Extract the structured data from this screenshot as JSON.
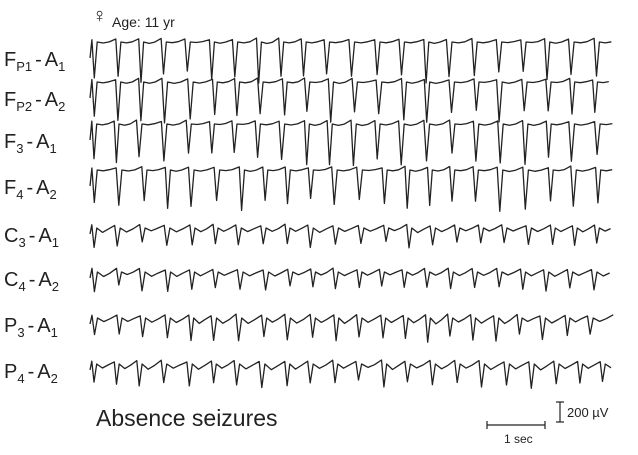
{
  "sex_symbol": "♀",
  "age": "Age: 11 yr",
  "separator": "-",
  "channels": [
    {
      "name": "F",
      "name_sub": "P1",
      "ref": "A",
      "ref_sub": "1"
    },
    {
      "name": "F",
      "name_sub": "P2",
      "ref": "A",
      "ref_sub": "2"
    },
    {
      "name": "F",
      "name_sub": "3",
      "ref": "A",
      "ref_sub": "1"
    },
    {
      "name": "F",
      "name_sub": "4",
      "ref": "A",
      "ref_sub": "2"
    },
    {
      "name": "C",
      "name_sub": "3",
      "ref": "A",
      "ref_sub": "1"
    },
    {
      "name": "C",
      "name_sub": "4",
      "ref": "A",
      "ref_sub": "2"
    },
    {
      "name": "P",
      "name_sub": "3",
      "ref": "A",
      "ref_sub": "1"
    },
    {
      "name": "P",
      "name_sub": "4",
      "ref": "A",
      "ref_sub": "2"
    }
  ],
  "caption": "Absence seizures",
  "scale_amplitude": "200 µV",
  "scale_time": "1 sec"
}
